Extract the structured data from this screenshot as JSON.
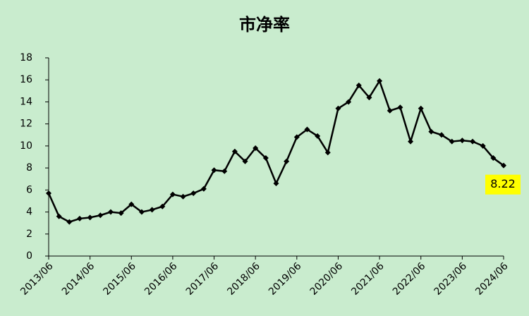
{
  "chart_data": {
    "type": "line",
    "title": "市净率",
    "categories": [
      "2013/06",
      null,
      null,
      null,
      "2014/06",
      null,
      null,
      null,
      "2015/06",
      null,
      null,
      null,
      "2016/06",
      null,
      null,
      null,
      "2017/06",
      null,
      null,
      null,
      "2018/06",
      null,
      null,
      null,
      "2019/06",
      null,
      null,
      null,
      "2020/06",
      null,
      null,
      null,
      "2021/06",
      null,
      null,
      null,
      "2022/06",
      null,
      null,
      null,
      "2023/06",
      null,
      null,
      null,
      "2024/06"
    ],
    "values": [
      5.7,
      3.6,
      3.1,
      3.4,
      3.5,
      3.7,
      4.0,
      3.9,
      4.7,
      4.0,
      4.2,
      4.5,
      5.6,
      5.4,
      5.7,
      6.1,
      7.8,
      7.7,
      9.5,
      8.6,
      9.8,
      8.9,
      6.6,
      8.6,
      10.8,
      11.5,
      10.9,
      9.4,
      13.4,
      14.0,
      15.5,
      14.4,
      15.9,
      13.2,
      13.5,
      10.4,
      13.4,
      11.3,
      11.0,
      10.4,
      10.5,
      10.4,
      10.0,
      8.9,
      8.22
    ],
    "color": "#000000",
    "ylim": [
      0,
      18
    ],
    "yticks": [
      0,
      2,
      4,
      6,
      8,
      10,
      12,
      14,
      16,
      18
    ],
    "highlight_color": "#ffff00"
  }
}
